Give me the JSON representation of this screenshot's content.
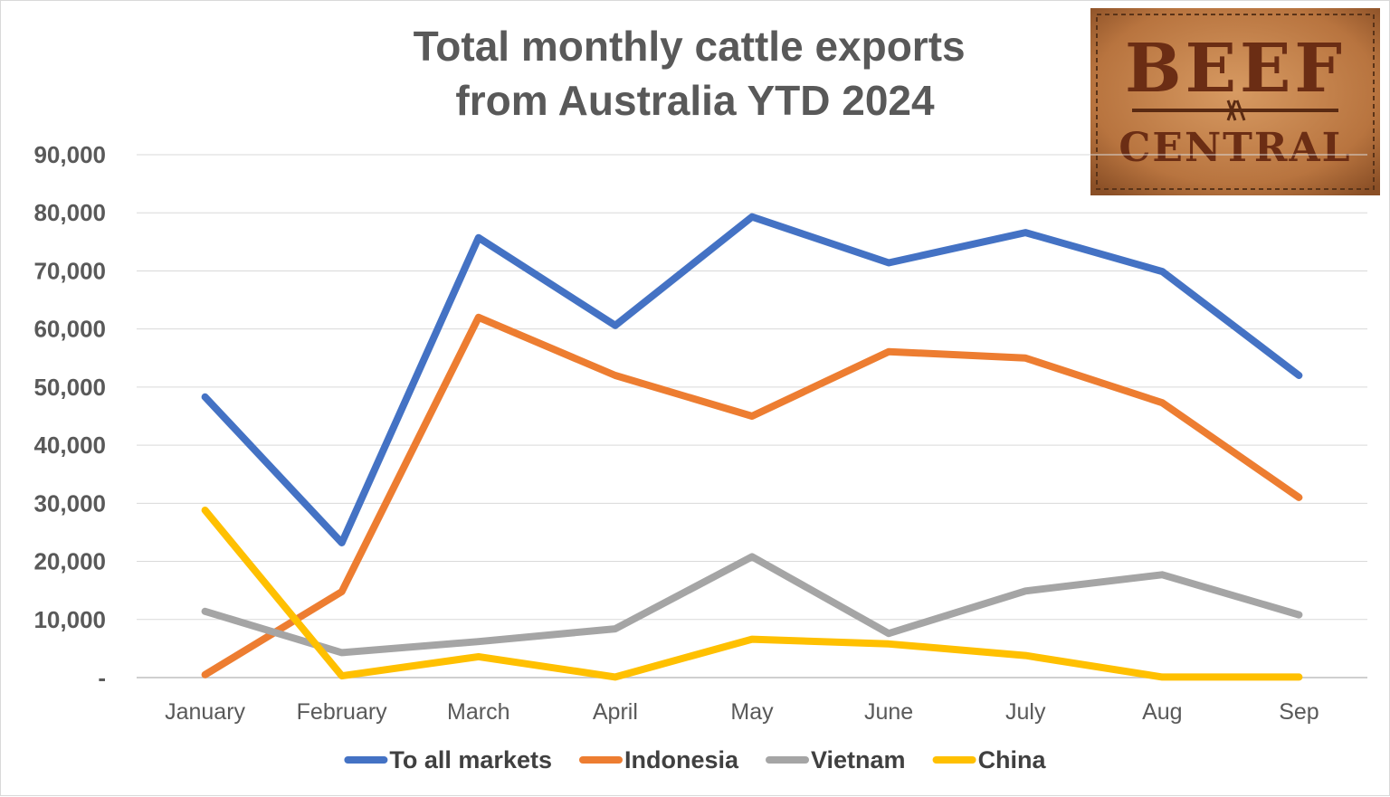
{
  "chart_data": {
    "type": "line",
    "title": "Total monthly cattle exports\nfrom Australia YTD 2024",
    "categories": [
      "January",
      "February",
      "March",
      "April",
      "May",
      "June",
      "July",
      "Aug",
      "Sep"
    ],
    "y_ticks": [
      "-",
      "10,000",
      "20,000",
      "30,000",
      "40,000",
      "50,000",
      "60,000",
      "70,000",
      "80,000",
      "90,000"
    ],
    "ylim": [
      0,
      90000
    ],
    "grid": true,
    "legend_position": "bottom",
    "series": [
      {
        "name": "To all markets",
        "color": "#4472c4",
        "values": [
          48300,
          23200,
          75700,
          60600,
          79300,
          71400,
          76600,
          69900,
          52000
        ]
      },
      {
        "name": "Indonesia",
        "color": "#ed7d31",
        "values": [
          500,
          14800,
          62000,
          52000,
          45000,
          56100,
          55000,
          47300,
          31000
        ]
      },
      {
        "name": "Vietnam",
        "color": "#a5a5a5",
        "values": [
          11400,
          4300,
          6200,
          8400,
          20800,
          7600,
          14900,
          17700,
          10800
        ]
      },
      {
        "name": "China",
        "color": "#ffc000",
        "values": [
          28800,
          300,
          3600,
          100,
          6600,
          5800,
          3800,
          100,
          100
        ]
      }
    ]
  },
  "logo": {
    "line1": "BEEF",
    "line2": "CENTRAL",
    "leather_color": "#c0804a"
  }
}
